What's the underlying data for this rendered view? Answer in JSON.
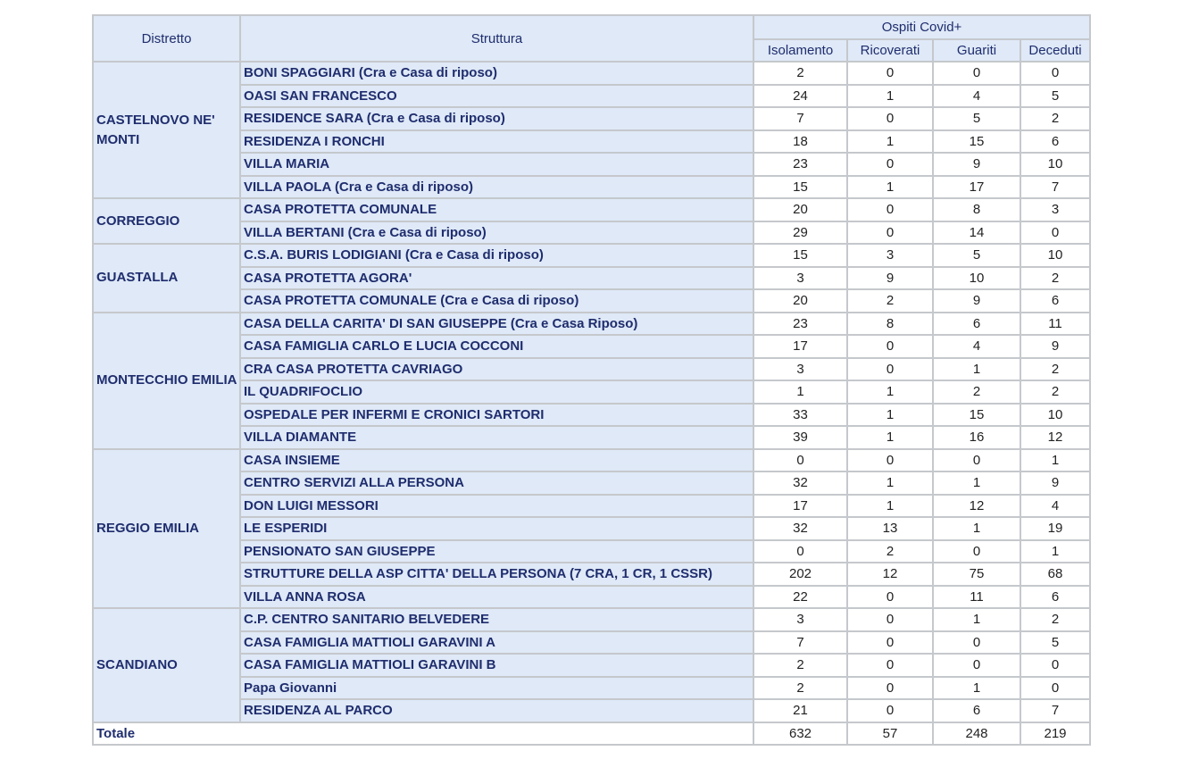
{
  "header": {
    "distretto": "Distretto",
    "struttura": "Struttura",
    "group": "Ospiti Covid+",
    "cols": [
      "Isolamento",
      "Ricoverati",
      "Guariti",
      "Deceduti"
    ]
  },
  "districts": [
    {
      "name": "CASTELNOVO NE' MONTI",
      "rows": [
        {
          "struttura": "BONI SPAGGIARI  (Cra e Casa di riposo)",
          "values": [
            2,
            0,
            0,
            0
          ]
        },
        {
          "struttura": "OASI SAN FRANCESCO",
          "values": [
            24,
            1,
            4,
            5
          ]
        },
        {
          "struttura": "RESIDENCE SARA  (Cra e Casa di riposo)",
          "values": [
            7,
            0,
            5,
            2
          ]
        },
        {
          "struttura": "RESIDENZA I RONCHI",
          "values": [
            18,
            1,
            15,
            6
          ]
        },
        {
          "struttura": "VILLA MARIA",
          "values": [
            23,
            0,
            9,
            10
          ]
        },
        {
          "struttura": "VILLA PAOLA   (Cra e Casa di riposo)",
          "values": [
            15,
            1,
            17,
            7
          ]
        }
      ]
    },
    {
      "name": "CORREGGIO",
      "rows": [
        {
          "struttura": "CASA PROTETTA COMUNALE",
          "values": [
            20,
            0,
            8,
            3
          ]
        },
        {
          "struttura": "VILLA BERTANI  (Cra e Casa di riposo)",
          "values": [
            29,
            0,
            14,
            0
          ]
        }
      ]
    },
    {
      "name": "GUASTALLA",
      "rows": [
        {
          "struttura": "C.S.A. BURIS LODIGIANI  (Cra e Casa di riposo)",
          "values": [
            15,
            3,
            5,
            10
          ]
        },
        {
          "struttura": "CASA PROTETTA AGORA'",
          "values": [
            3,
            9,
            10,
            2
          ]
        },
        {
          "struttura": "CASA PROTETTA COMUNALE  (Cra e Casa di riposo)",
          "values": [
            20,
            2,
            9,
            6
          ]
        }
      ]
    },
    {
      "name": "MONTECCHIO EMILIA",
      "rows": [
        {
          "struttura": "CASA DELLA CARITA' DI SAN GIUSEPPE (Cra e Casa Riposo)",
          "values": [
            23,
            8,
            6,
            11
          ]
        },
        {
          "struttura": "CASA FAMIGLIA CARLO E LUCIA COCCONI",
          "values": [
            17,
            0,
            4,
            9
          ]
        },
        {
          "struttura": "CRA CASA PROTETTA CAVRIAGO",
          "values": [
            3,
            0,
            1,
            2
          ]
        },
        {
          "struttura": "IL QUADRIFOCLIO",
          "values": [
            1,
            1,
            2,
            2
          ]
        },
        {
          "struttura": "OSPEDALE PER INFERMI E CRONICI SARTORI",
          "values": [
            33,
            1,
            15,
            10
          ]
        },
        {
          "struttura": "VILLA DIAMANTE",
          "values": [
            39,
            1,
            16,
            12
          ]
        }
      ]
    },
    {
      "name": "REGGIO EMILIA",
      "rows": [
        {
          "struttura": "CASA INSIEME",
          "values": [
            0,
            0,
            0,
            1
          ]
        },
        {
          "struttura": "CENTRO SERVIZI ALLA PERSONA",
          "values": [
            32,
            1,
            1,
            9
          ]
        },
        {
          "struttura": "DON LUIGI MESSORI",
          "values": [
            17,
            1,
            12,
            4
          ]
        },
        {
          "struttura": "LE ESPERIDI",
          "values": [
            32,
            13,
            1,
            19
          ]
        },
        {
          "struttura": "PENSIONATO SAN GIUSEPPE",
          "values": [
            0,
            2,
            0,
            1
          ]
        },
        {
          "struttura": "STRUTTURE DELLA ASP CITTA' DELLA PERSONA (7 CRA, 1 CR, 1 CSSR)",
          "values": [
            202,
            12,
            75,
            68
          ]
        },
        {
          "struttura": "VILLA ANNA ROSA",
          "values": [
            22,
            0,
            11,
            6
          ]
        }
      ]
    },
    {
      "name": "SCANDIANO",
      "rows": [
        {
          "struttura": "C.P. CENTRO SANITARIO BELVEDERE",
          "values": [
            3,
            0,
            1,
            2
          ]
        },
        {
          "struttura": "CASA FAMIGLIA MATTIOLI GARAVINI A",
          "values": [
            7,
            0,
            0,
            5
          ]
        },
        {
          "struttura": "CASA FAMIGLIA MATTIOLI GARAVINI B",
          "values": [
            2,
            0,
            0,
            0
          ]
        },
        {
          "struttura": "Papa Giovanni",
          "values": [
            2,
            0,
            1,
            0
          ]
        },
        {
          "struttura": "RESIDENZA AL PARCO",
          "values": [
            21,
            0,
            6,
            7
          ]
        }
      ]
    }
  ],
  "total": {
    "label": "Totale",
    "values": [
      632,
      57,
      248,
      219
    ]
  }
}
